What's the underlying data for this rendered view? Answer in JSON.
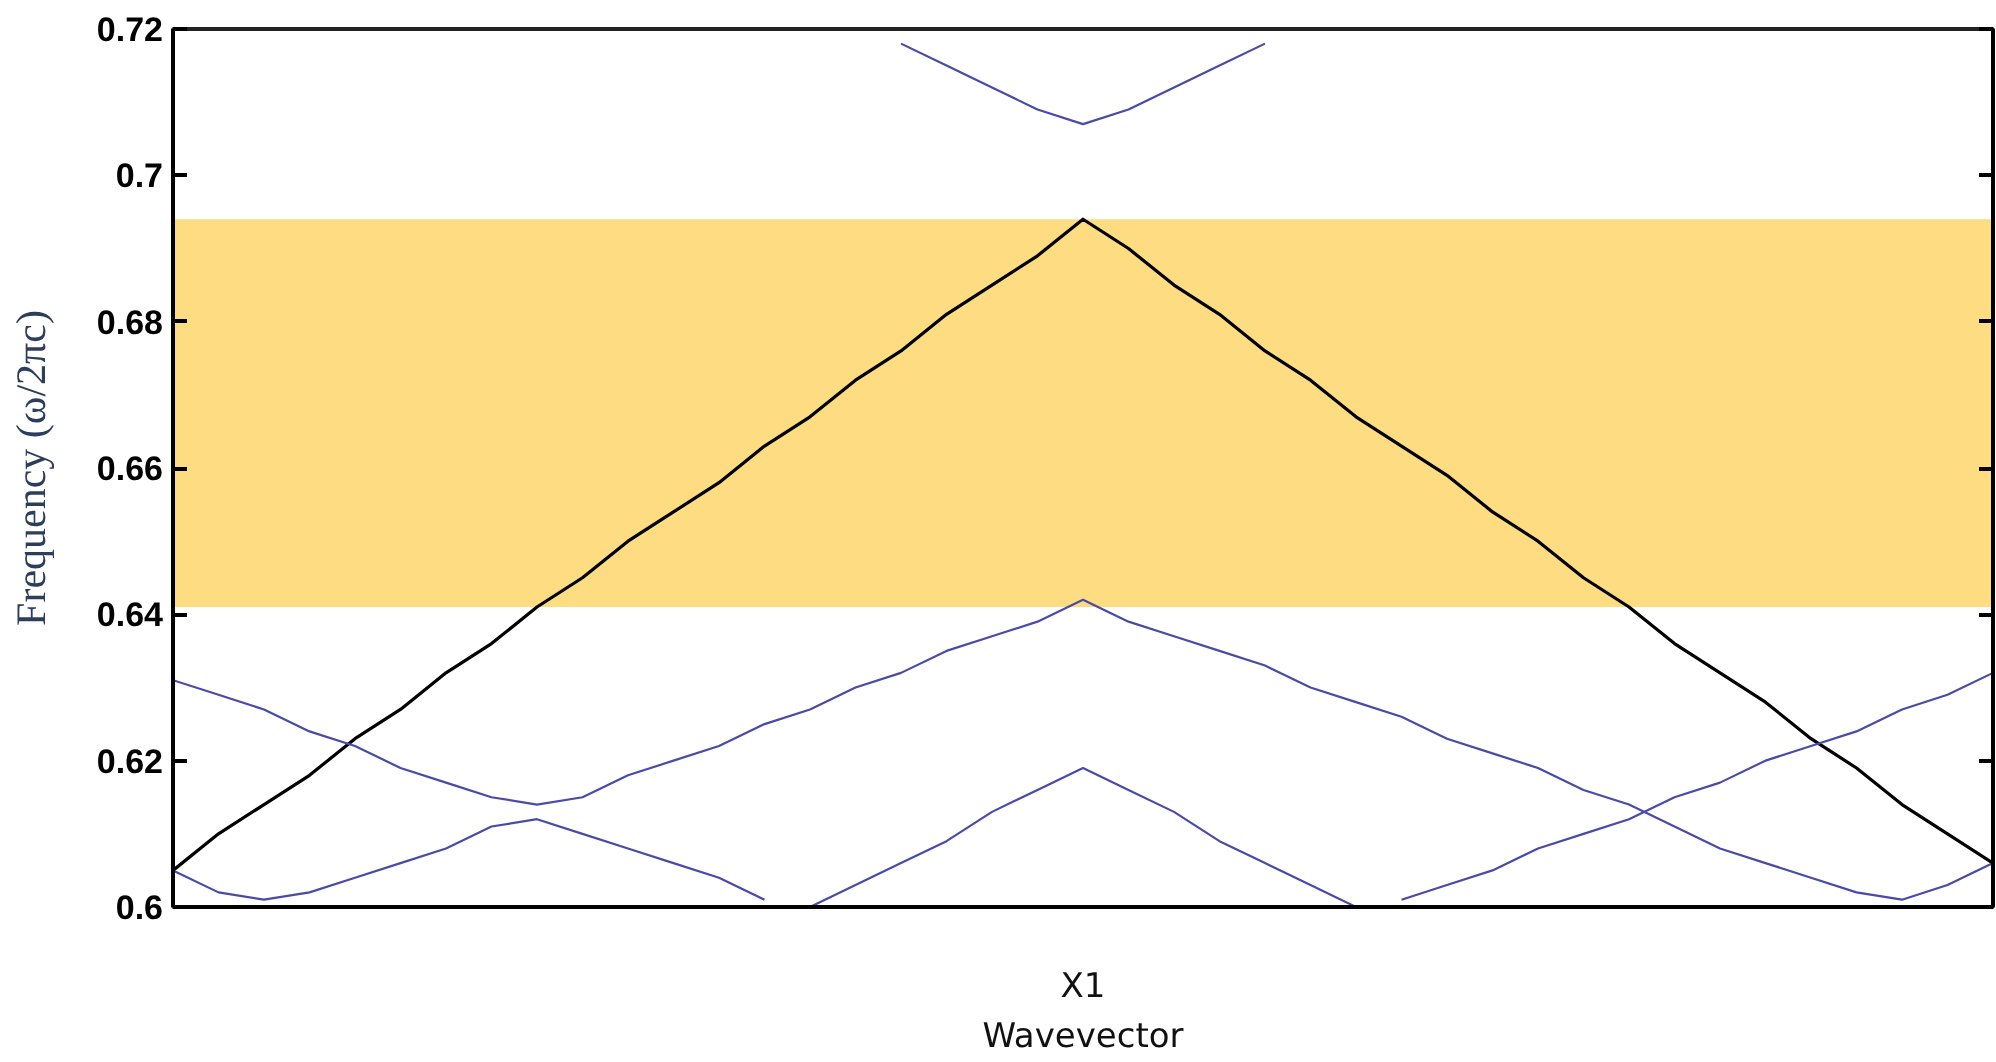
{
  "chart_data": {
    "type": "line",
    "xlabel": "Wavevector",
    "ylabel": "Frequency (ω/2πc)",
    "categories": [
      null,
      null,
      null,
      null,
      null,
      null,
      null,
      null,
      null,
      null,
      null,
      null,
      null,
      null,
      null,
      null,
      null,
      null,
      null,
      null,
      "X1",
      null,
      null,
      null,
      null,
      null,
      null,
      null,
      null,
      null,
      null,
      null,
      null,
      null,
      null,
      null,
      null,
      null,
      null,
      null,
      null
    ],
    "ylim": [
      0.6,
      0.72
    ],
    "yticks": [
      0.6,
      0.62,
      0.64,
      0.66,
      0.68,
      0.7,
      0.72
    ],
    "grid": false,
    "marker": "none",
    "line_style": "solid",
    "bands": [
      {
        "axis": "y",
        "from": 0.641,
        "to": 0.694,
        "color": "#fddc82"
      }
    ],
    "series": [
      {
        "color": "#000000",
        "values": [
          0.605,
          0.61,
          0.614,
          0.618,
          0.623,
          0.627,
          0.632,
          0.636,
          0.641,
          0.645,
          0.65,
          0.654,
          0.658,
          0.663,
          0.667,
          0.672,
          0.676,
          0.681,
          0.685,
          0.689,
          0.694,
          0.69,
          0.685,
          0.681,
          0.676,
          0.672,
          0.667,
          0.663,
          0.659,
          0.654,
          0.65,
          0.645,
          0.641,
          0.636,
          0.632,
          0.628,
          0.623,
          0.619,
          0.614,
          0.61,
          0.606
        ]
      },
      {
        "color": "#4a4aa8",
        "values": [
          0.631,
          0.629,
          0.627,
          0.624,
          0.622,
          0.619,
          0.617,
          0.615,
          0.614,
          0.615,
          0.618,
          0.62,
          0.622,
          0.625,
          0.627,
          0.63,
          0.632,
          0.635,
          0.637,
          0.639,
          0.642,
          0.639,
          0.637,
          0.635,
          0.633,
          0.63,
          0.628,
          0.626,
          0.623,
          0.621,
          0.619,
          0.616,
          0.614,
          0.611,
          0.608,
          0.606,
          0.604,
          0.602,
          0.601,
          0.603,
          0.606
        ]
      },
      {
        "color": "#4a4aa8",
        "values": [
          0.605,
          0.602,
          0.601,
          0.602,
          0.604,
          0.606,
          0.608,
          0.611,
          0.612,
          0.61,
          0.608,
          0.606,
          0.604,
          0.601,
          null,
          null,
          null,
          null,
          null,
          null,
          null,
          null,
          null,
          null,
          null,
          null,
          null,
          null,
          null,
          null,
          null,
          null,
          null,
          null,
          null,
          null,
          null,
          null,
          null,
          null,
          null
        ]
      },
      {
        "color": "#4a4aa8",
        "values": [
          null,
          null,
          null,
          null,
          null,
          null,
          null,
          null,
          null,
          null,
          null,
          null,
          null,
          null,
          0.6,
          0.603,
          0.606,
          0.609,
          0.613,
          0.616,
          0.619,
          0.616,
          0.613,
          0.609,
          0.606,
          0.603,
          0.6,
          null,
          null,
          null,
          null,
          null,
          null,
          null,
          null,
          null,
          null,
          null,
          null,
          null,
          null
        ]
      },
      {
        "color": "#4a4aa8",
        "values": [
          null,
          null,
          null,
          null,
          null,
          null,
          null,
          null,
          null,
          null,
          null,
          null,
          null,
          null,
          null,
          null,
          null,
          null,
          null,
          null,
          null,
          null,
          null,
          null,
          null,
          null,
          null,
          0.601,
          0.603,
          0.605,
          0.608,
          0.61,
          0.612,
          0.615,
          0.617,
          0.62,
          0.622,
          0.624,
          0.627,
          0.629,
          0.632
        ]
      },
      {
        "color": "#4a4aa8",
        "values": [
          null,
          null,
          null,
          null,
          null,
          null,
          null,
          null,
          null,
          null,
          null,
          null,
          null,
          null,
          null,
          null,
          0.718,
          0.715,
          0.712,
          0.709,
          0.707,
          0.709,
          0.712,
          0.715,
          0.718,
          null,
          null,
          null,
          null,
          null,
          null,
          null,
          null,
          null,
          null,
          null,
          null,
          null,
          null,
          null,
          null
        ]
      }
    ]
  }
}
